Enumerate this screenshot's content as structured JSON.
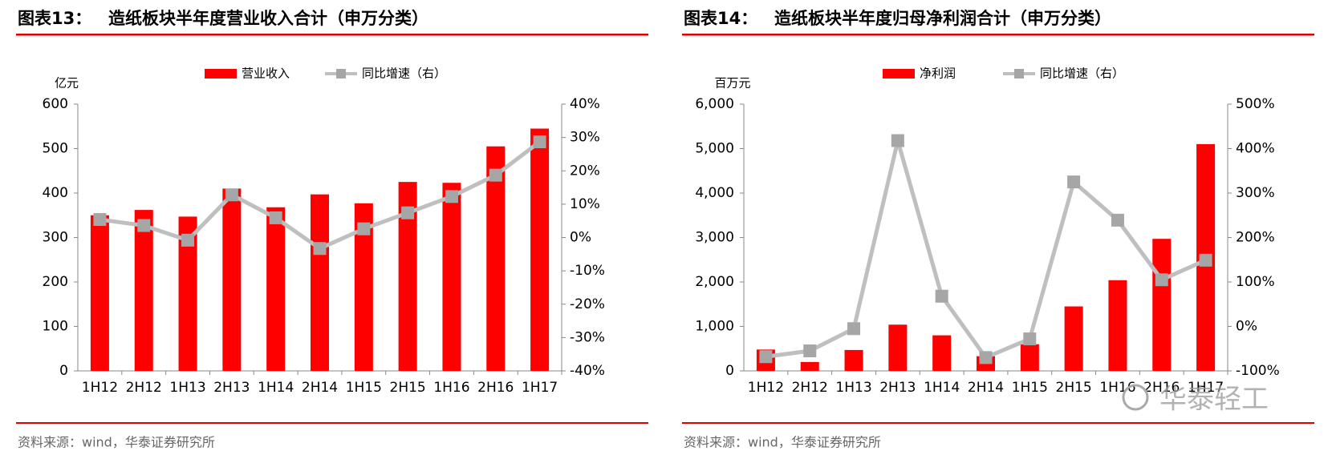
{
  "chart_data": [
    {
      "type": "bar",
      "label": "图表13：",
      "title": "造纸板块半年度营业收入合计（申万分类）",
      "y_label": "亿元",
      "source": "资料来源：wind，华泰证券研究所",
      "categories": [
        "1H12",
        "2H12",
        "1H13",
        "2H13",
        "1H14",
        "2H14",
        "1H15",
        "2H15",
        "1H16",
        "2H16",
        "1H17"
      ],
      "series": [
        {
          "name": "营业收入",
          "type": "bar",
          "color": "#ff0000",
          "values": [
            350,
            362,
            347,
            410,
            368,
            397,
            377,
            425,
            423,
            505,
            545
          ]
        },
        {
          "name": "同比增速（右）",
          "type": "line",
          "axis": "y2",
          "color": "#bfbfbf",
          "values": [
            5.4,
            3.6,
            -0.8,
            12.8,
            5.9,
            -3.3,
            2.6,
            7.4,
            12.3,
            18.7,
            28.7
          ]
        }
      ],
      "ylim": [
        0,
        600
      ],
      "yticks": [
        0,
        100,
        200,
        300,
        400,
        500,
        600
      ],
      "y2lim": [
        -40,
        40
      ],
      "y2ticks": [
        {
          "value": -40,
          "label": "-40%"
        },
        {
          "value": -30,
          "label": "-30%"
        },
        {
          "value": -20,
          "label": "-20%"
        },
        {
          "value": -10,
          "label": "-10%"
        },
        {
          "value": 0,
          "label": "0%"
        },
        {
          "value": 10,
          "label": "10%"
        },
        {
          "value": 20,
          "label": "20%"
        },
        {
          "value": 30,
          "label": "30%"
        },
        {
          "value": 40,
          "label": "40%"
        }
      ]
    },
    {
      "type": "bar",
      "label": "图表14：",
      "title": "造纸板块半年度归母净利润合计（申万分类）",
      "y_label": "百万元",
      "source": "资料来源：wind，华泰证券研究所",
      "categories": [
        "1H12",
        "2H12",
        "1H13",
        "2H13",
        "1H14",
        "2H14",
        "1H15",
        "2H15",
        "1H16",
        "2H16",
        "1H17"
      ],
      "series": [
        {
          "name": "净利润",
          "type": "bar",
          "color": "#ff0000",
          "values": [
            480,
            200,
            470,
            1040,
            800,
            330,
            600,
            1450,
            2040,
            2970,
            5100
          ]
        },
        {
          "name": "同比增速（右）",
          "type": "line",
          "axis": "y2",
          "color": "#bfbfbf",
          "values": [
            -68,
            -55,
            -5,
            418,
            68,
            -70,
            -28,
            325,
            239,
            105,
            149
          ]
        }
      ],
      "ylim": [
        0,
        6000
      ],
      "yticks": [
        0,
        {
          "value": 1000,
          "label": "1,000"
        },
        {
          "value": 2000,
          "label": "2,000"
        },
        {
          "value": 3000,
          "label": "3,000"
        },
        {
          "value": 4000,
          "label": "4,000"
        },
        {
          "value": 5000,
          "label": "5,000"
        },
        {
          "value": 6000,
          "label": "6,000"
        }
      ],
      "y2lim": [
        -100,
        500
      ],
      "y2ticks": [
        {
          "value": -100,
          "label": "-100%"
        },
        {
          "value": 0,
          "label": "0%"
        },
        {
          "value": 100,
          "label": "100%"
        },
        {
          "value": 200,
          "label": "200%"
        },
        {
          "value": 300,
          "label": "300%"
        },
        {
          "value": 400,
          "label": "400%"
        },
        {
          "value": 500,
          "label": "500%"
        }
      ]
    }
  ],
  "watermark": "华泰轻工"
}
